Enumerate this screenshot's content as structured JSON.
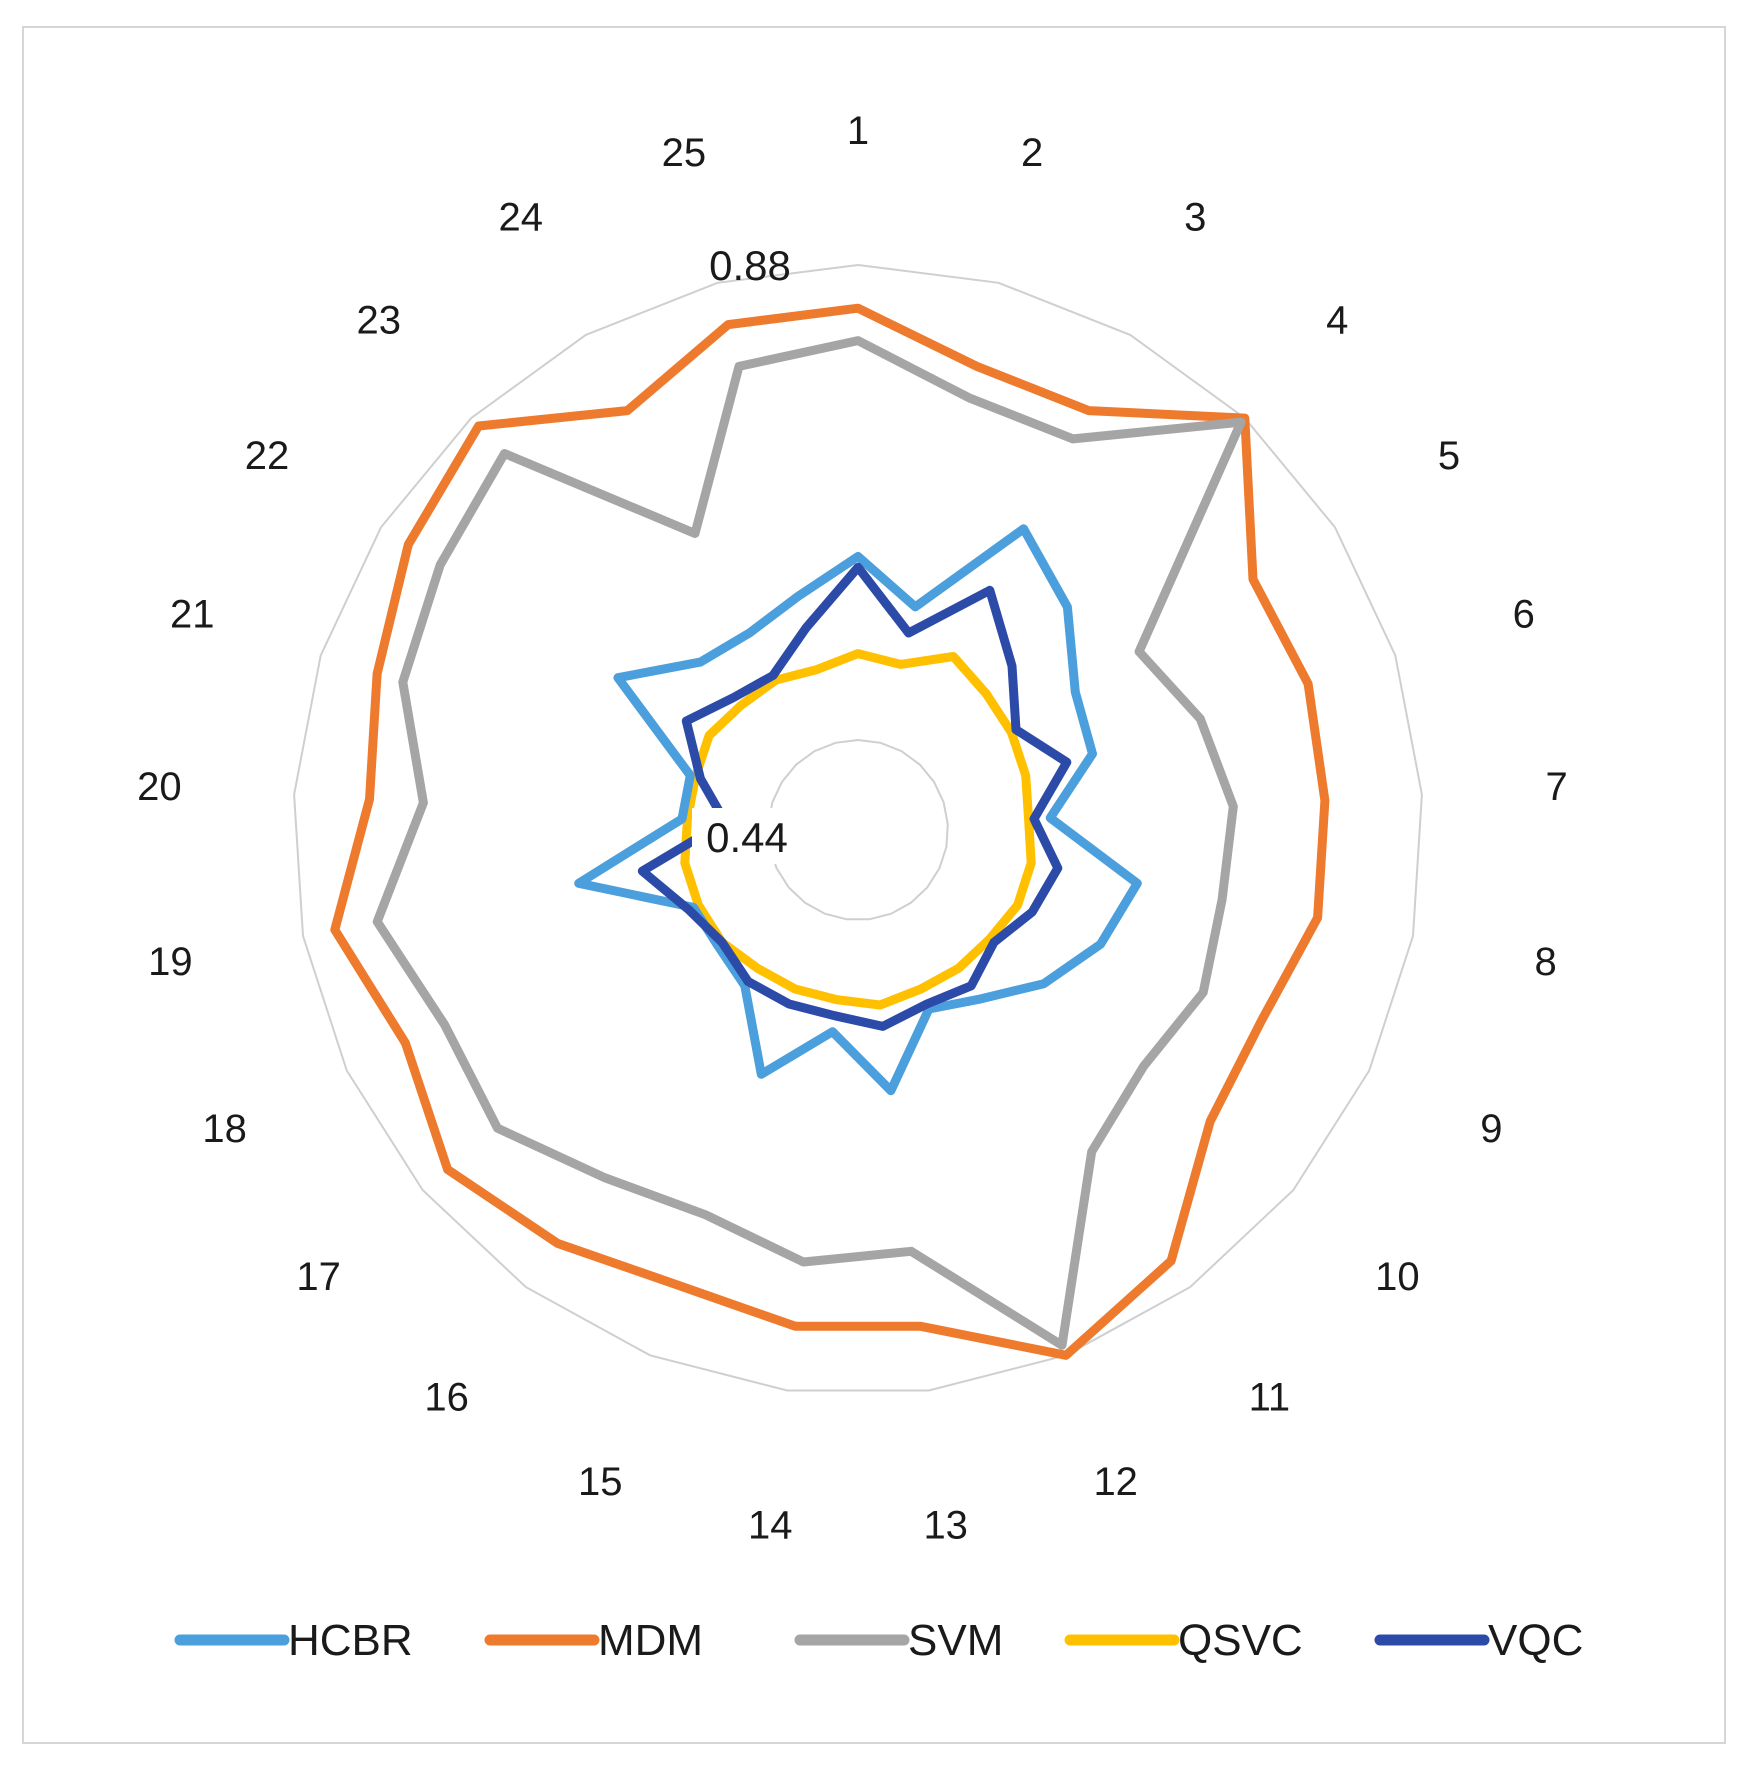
{
  "chart_data": {
    "type": "radar",
    "title": "",
    "categories": [
      "1",
      "2",
      "3",
      "4",
      "5",
      "6",
      "7",
      "8",
      "9",
      "10",
      "11",
      "12",
      "13",
      "14",
      "15",
      "16",
      "17",
      "18",
      "19",
      "20",
      "21",
      "22",
      "23",
      "24",
      "25"
    ],
    "range": [
      0.44,
      0.88
    ],
    "tick_labels": [
      "0.88",
      "0.44"
    ],
    "grid": true,
    "legend_position": "bottom",
    "series": [
      {
        "name": "HCBR",
        "color": "#4a9fdc",
        "values": [
          0.61,
          0.57,
          0.675,
          0.64,
          0.595,
          0.585,
          0.535,
          0.62,
          0.605,
          0.58,
          0.55,
          0.535,
          0.6,
          0.545,
          0.6,
          0.535,
          0.525,
          0.525,
          0.62,
          0.52,
          0.52,
          0.62,
          0.57,
          0.565,
          0.58
        ]
      },
      {
        "name": "MDM",
        "color": "#ee7a2d",
        "values": [
          0.84,
          0.8,
          0.8,
          0.88,
          0.79,
          0.795,
          0.79,
          0.79,
          0.77,
          0.78,
          0.85,
          0.88,
          0.82,
          0.82,
          0.81,
          0.83,
          0.85,
          0.82,
          0.85,
          0.81,
          0.825,
          0.85,
          0.87,
          0.8,
          0.84
        ]
      },
      {
        "name": "SVM",
        "color": "#a5a5a5",
        "values": [
          0.81,
          0.77,
          0.77,
          0.875,
          0.665,
          0.69,
          0.705,
          0.7,
          0.71,
          0.7,
          0.725,
          0.87,
          0.75,
          0.76,
          0.74,
          0.755,
          0.79,
          0.78,
          0.81,
          0.76,
          0.8,
          0.815,
          0.835,
          0.67,
          0.8
        ]
      },
      {
        "name": "QSVC",
        "color": "#ffc000",
        "values": [
          0.52,
          0.515,
          0.54,
          0.53,
          0.525,
          0.52,
          0.515,
          0.52,
          0.52,
          0.515,
          0.515,
          0.515,
          0.52,
          0.515,
          0.515,
          0.515,
          0.52,
          0.52,
          0.52,
          0.515,
          0.515,
          0.52,
          0.515,
          0.515,
          0.51
        ]
      },
      {
        "name": "VQC",
        "color": "#2c4ba8",
        "values": [
          0.6,
          0.545,
          0.61,
          0.565,
          0.53,
          0.56,
          0.52,
          0.545,
          0.535,
          0.52,
          0.535,
          0.53,
          0.54,
          0.53,
          0.53,
          0.53,
          0.52,
          0.53,
          0.56,
          0.48,
          0.51,
          0.545,
          0.525,
          0.52,
          0.55
        ]
      }
    ]
  }
}
